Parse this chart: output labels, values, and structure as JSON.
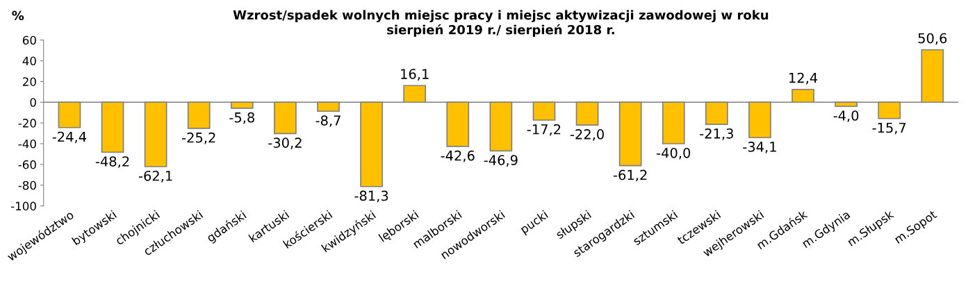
{
  "chart_data": {
    "type": "bar",
    "title": "Wzrost/spadek wolnych miejsc pracy i miejsc aktywizacji zawodowej w roku\nsierpień 2019 r./ sierpień 2018 r.",
    "ylabel": "%",
    "categories": [
      "województwo",
      "bytowski",
      "chojnicki",
      "człuchowski",
      "gdański",
      "kartuski",
      "kościerski",
      "kwidzyński",
      "lęborski",
      "malborski",
      "nowodworski",
      "pucki",
      "słupski",
      "starogardzki",
      "sztumski",
      "tczewski",
      "wejherowski",
      "m.Gdańsk",
      "m.Gdynia",
      "m.Słupsk",
      "m.Sopot"
    ],
    "values": [
      -24.4,
      -48.2,
      -62.1,
      -25.2,
      -5.8,
      -30.2,
      -8.7,
      -81.3,
      16.1,
      -42.6,
      -46.9,
      -17.2,
      -22.0,
      -61.2,
      -40.0,
      -21.3,
      -34.1,
      12.4,
      -4.0,
      -15.7,
      50.6
    ],
    "value_labels": [
      "-24,4",
      "-48,2",
      "-62,1",
      "-25,2",
      "-5,8",
      "-30,2",
      "-8,7",
      "-81,3",
      "16,1",
      "-42,6",
      "-46,9",
      "-17,2",
      "-22,0",
      "-61,2",
      "-40,0",
      "-21,3",
      "-34,1",
      "12,4",
      "-4,0",
      "-15,7",
      "50,6"
    ],
    "color": "#ffc000",
    "ylim": [
      -100,
      60
    ],
    "yticks": [
      -100,
      -80,
      -60,
      -40,
      -20,
      0,
      20,
      40,
      60
    ],
    "grid": false,
    "ref_lines": [
      {
        "axis": "y",
        "value": 0,
        "color": "#7f7f7f"
      }
    ],
    "legend": false
  }
}
